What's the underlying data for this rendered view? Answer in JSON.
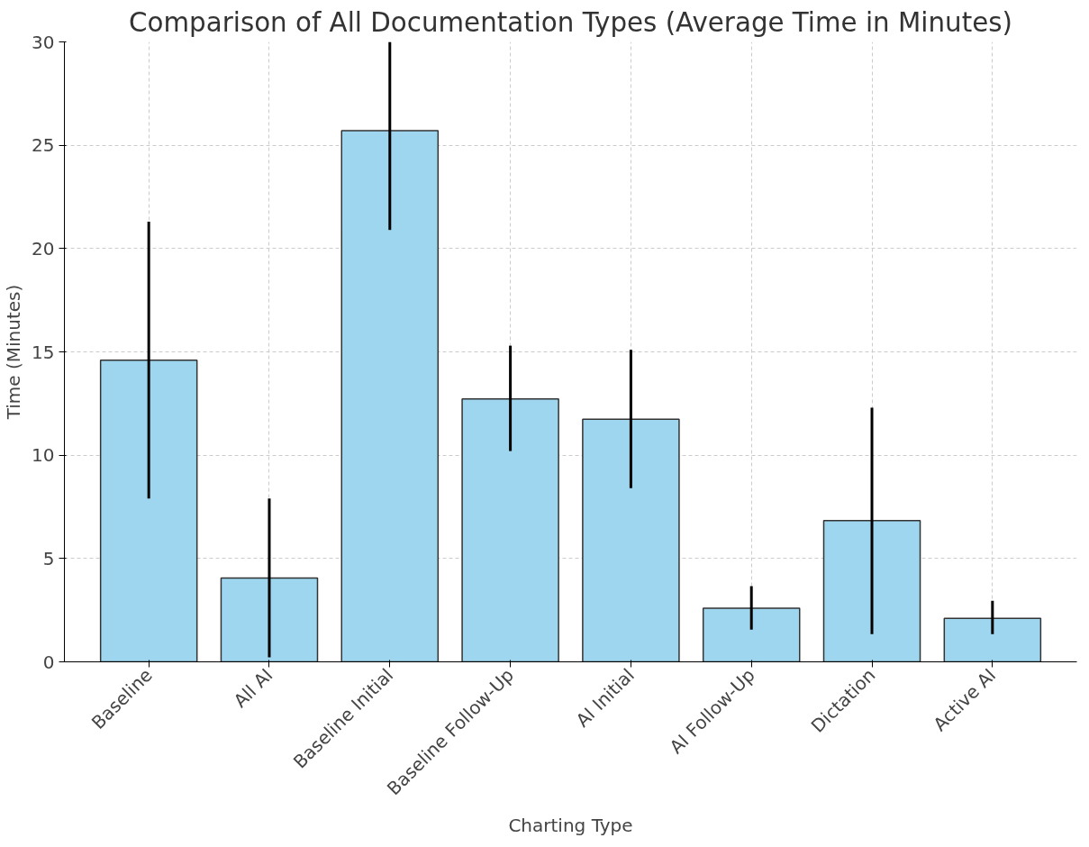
{
  "chart_data": {
    "type": "bar",
    "title": "Comparison of All Documentation Types (Average Time in Minutes)",
    "xlabel": "Charting Type",
    "ylabel": "Time (Minutes)",
    "categories": [
      "Baseline",
      "All AI",
      "Baseline Initial",
      "Baseline Follow-Up",
      "AI Initial",
      "AI Follow-Up",
      "Dictation",
      "Active AI"
    ],
    "values": [
      14.6,
      4.06,
      25.7,
      12.72,
      11.74,
      2.59,
      6.83,
      2.1
    ],
    "errors": [
      [
        7.9,
        21.3
      ],
      [
        0.22,
        7.9
      ],
      [
        20.9,
        30
      ],
      [
        10.2,
        15.3
      ],
      [
        8.4,
        15.1
      ],
      [
        1.56,
        3.66
      ],
      [
        1.34,
        12.3
      ],
      [
        1.34,
        2.95
      ]
    ],
    "color": "#9dd6ee",
    "ylim": [
      0,
      30
    ],
    "yticks": [
      0,
      5,
      10,
      15,
      20,
      25,
      30
    ],
    "grid": true
  }
}
